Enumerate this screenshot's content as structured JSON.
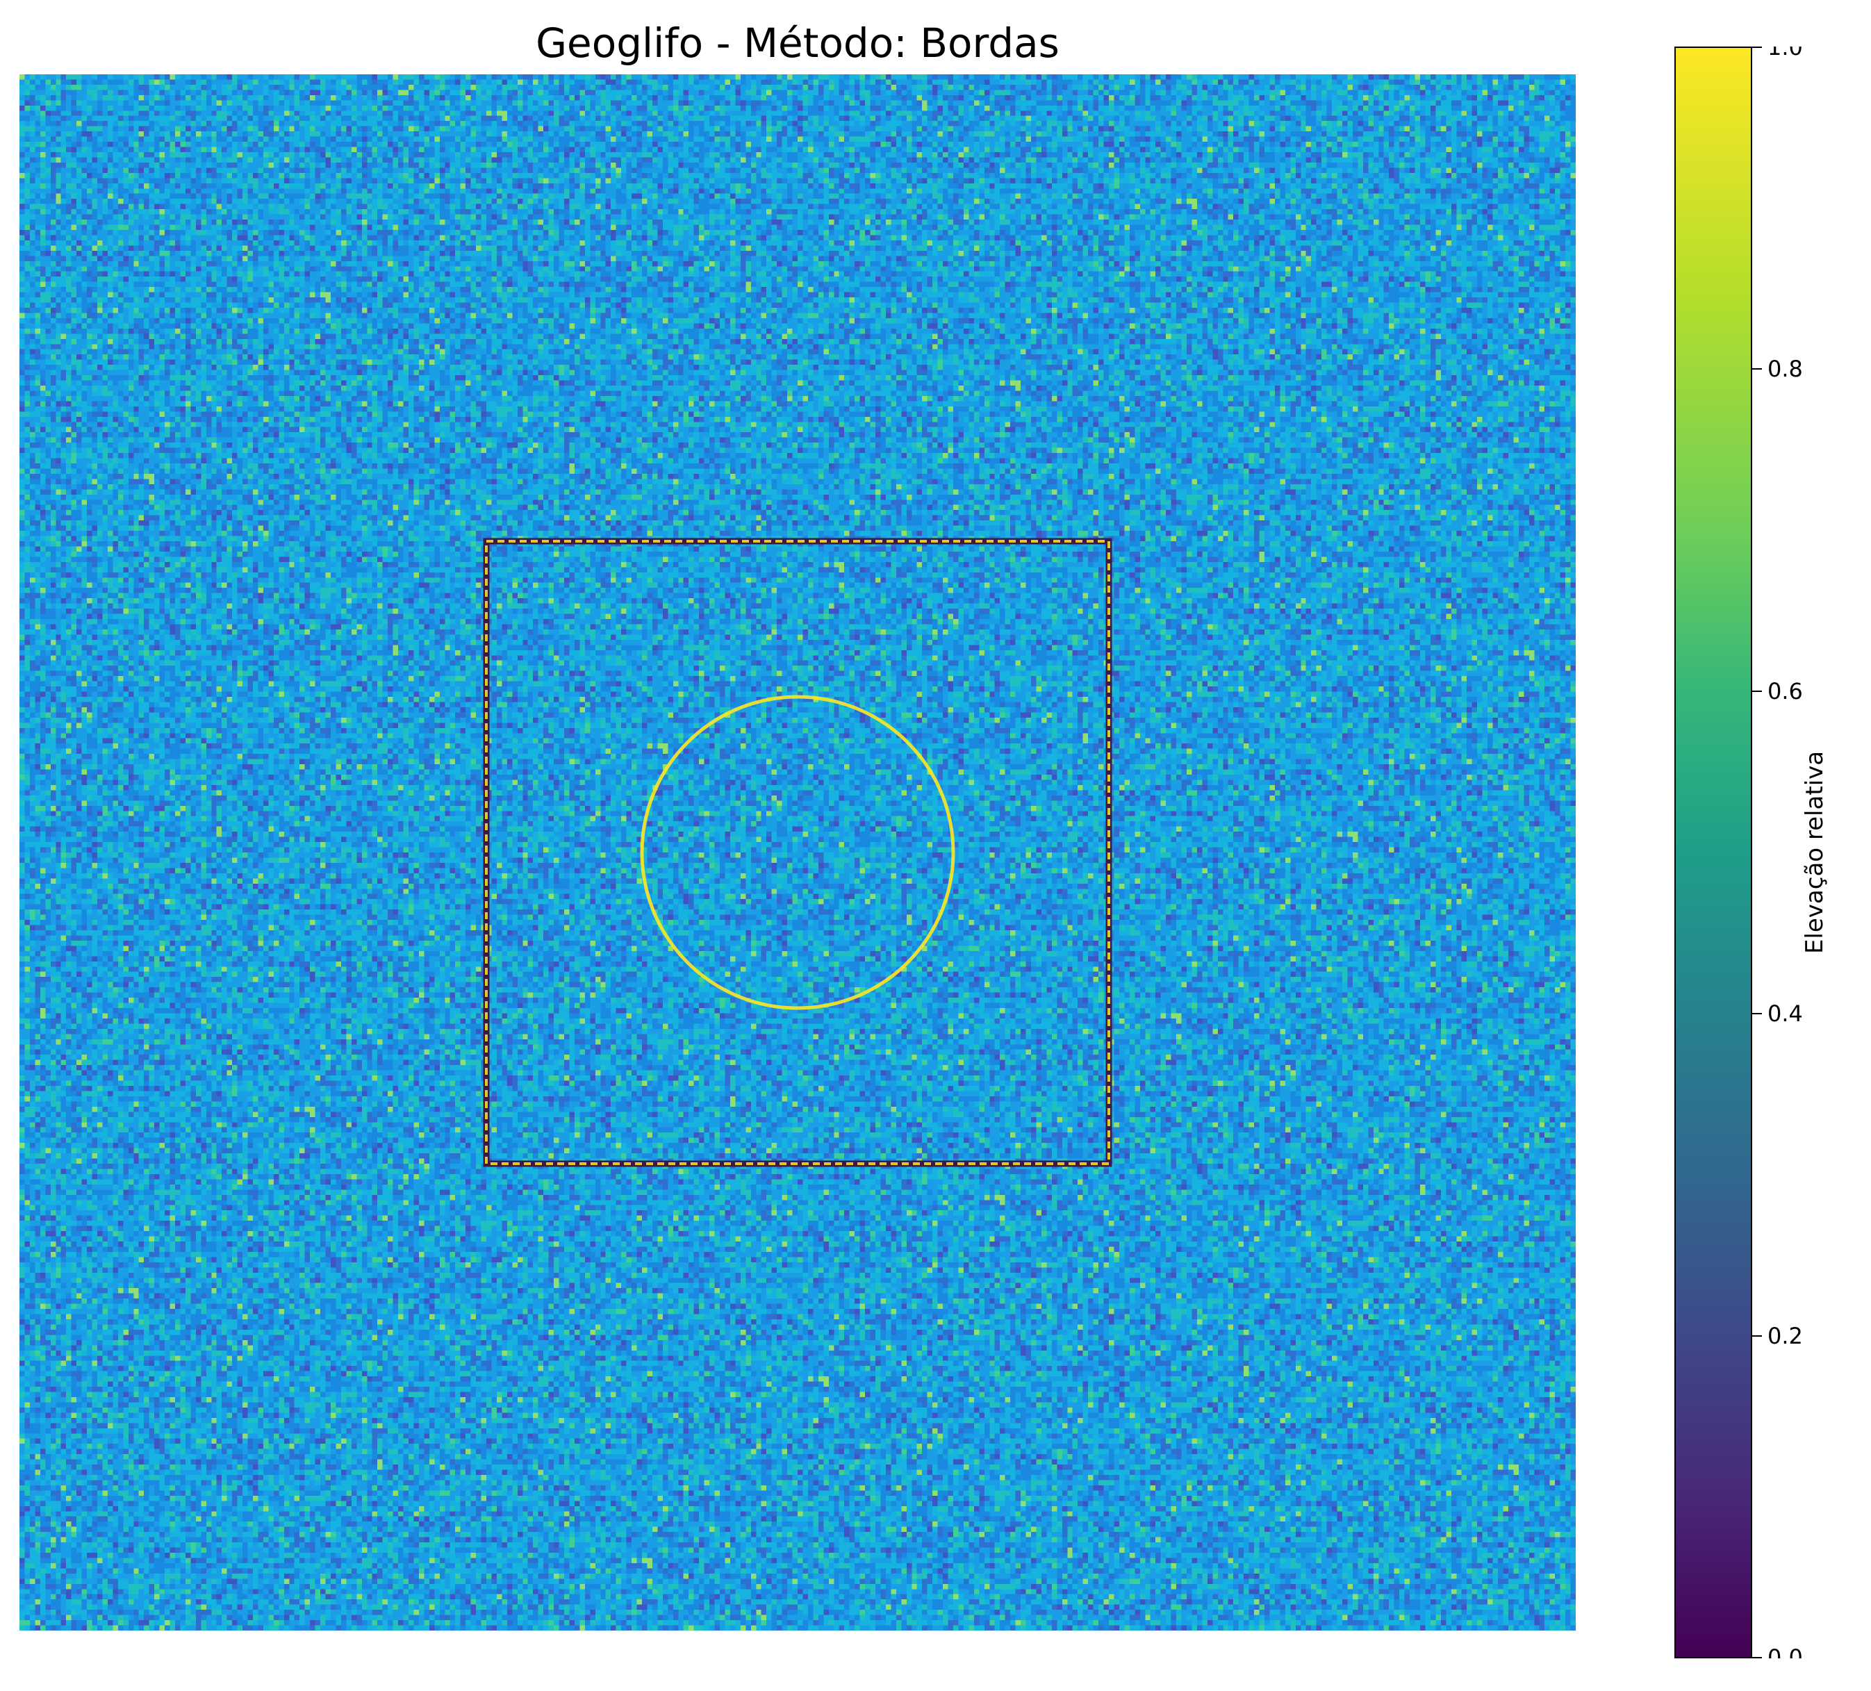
{
  "chart_data": {
    "type": "heatmap",
    "title": "Geoglifo - Método: Bordas",
    "xlabel": "",
    "ylabel": "",
    "axes_visible": false,
    "colormap": "viridis",
    "background_level": 0.7,
    "colorbar": {
      "label": "Elevação relativa",
      "range": [
        0,
        1
      ],
      "ticks": [
        "0.0",
        "0.2",
        "0.4",
        "0.6",
        "0.8",
        "1.0"
      ],
      "tick_values": [
        0,
        0.2,
        0.4,
        0.6,
        0.8,
        1.0
      ]
    },
    "grid_size": [
      300,
      300
    ],
    "features": [
      {
        "shape": "square",
        "x_range": [
          90,
          210
        ],
        "y_range": [
          90,
          210
        ],
        "edge_value": 1.0
      },
      {
        "shape": "circle",
        "center": [
          150,
          150
        ],
        "radius": 30,
        "edge_value": 1.0
      }
    ],
    "colors": {
      "background_blue": "#1a9fe6",
      "edge_yellow": "#fde725",
      "edge_dark": "#3b1a4a"
    }
  }
}
